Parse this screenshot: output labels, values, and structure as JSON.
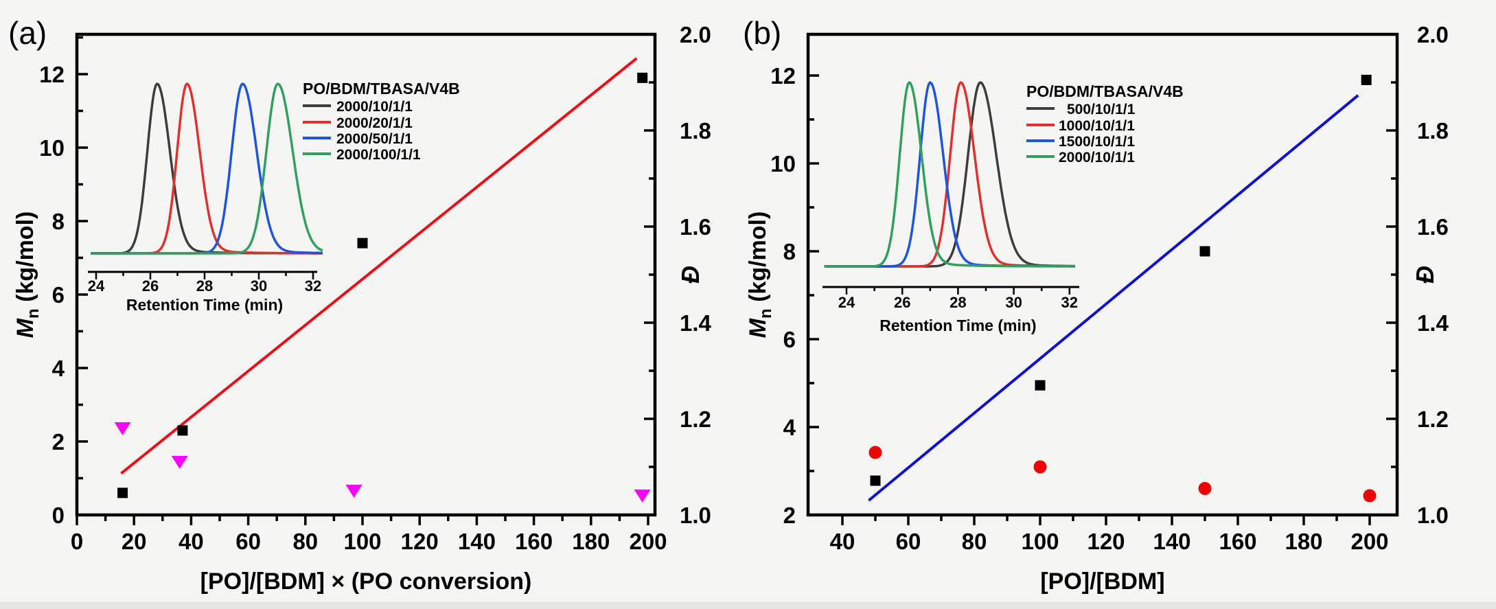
{
  "figure": {
    "background": "#f5f5f3",
    "bottom_strip_color": "#e4e4e2",
    "description": "Dual-panel polymer chart: Mn and dispersity versus monomer ratio with GPC inset traces"
  },
  "chart_data": [
    {
      "type": "scatter",
      "panel_label": "(a)",
      "x_axis": {
        "title": "[PO]/[BDM] × (PO conversion)",
        "range": [
          0,
          202.5
        ],
        "major_ticks": [
          0,
          20,
          40,
          60,
          80,
          100,
          120,
          140,
          160,
          180,
          200
        ],
        "minor_step": 10
      },
      "y_axis_left": {
        "title_symbol": "M",
        "title_subscript": "n",
        "title_units": " (kg/mol)",
        "range": [
          0,
          13.08
        ],
        "major_ticks": [
          0,
          2,
          4,
          6,
          8,
          10,
          12
        ],
        "minor_step": 1
      },
      "y_axis_right": {
        "title": "Đ",
        "range": [
          1.0,
          2.0
        ],
        "major_tick_labels": [
          "1.0",
          "1.2",
          "1.4",
          "1.6",
          "1.8",
          "2.0"
        ],
        "minor_step": 0.1
      },
      "series": [
        {
          "name": "Mn (kg/mol)",
          "axis": "left",
          "marker": "square",
          "color": "#000000",
          "points": [
            [
              16,
              0.6
            ],
            [
              37,
              2.3
            ],
            [
              100,
              7.4
            ],
            [
              198,
              11.9
            ]
          ]
        },
        {
          "name": "Đ",
          "axis": "right",
          "marker": "triangle-down",
          "color": "#ff00ff",
          "points": [
            [
              16,
              1.18
            ],
            [
              36,
              1.11
            ],
            [
              97,
              1.05
            ],
            [
              198,
              1.04
            ]
          ]
        }
      ],
      "fit_line": {
        "color": "#ec0d18",
        "from": [
          15.5,
          1.13
        ],
        "to": [
          196,
          12.43
        ]
      },
      "inset": {
        "x_title": "Retention Time (min)",
        "x_ticks": [
          24,
          26,
          28,
          30,
          32
        ],
        "x_range": [
          23.8,
          32.4
        ],
        "legend_title": "PO/BDM/TBASA/V4B",
        "curves": [
          {
            "label": "2000/10/1/1",
            "color": "#3d3d3d",
            "peak_min": 26.25,
            "sigma": 0.36
          },
          {
            "label": "2000/20/1/1",
            "color": "#e0312e",
            "peak_min": 27.35,
            "sigma": 0.36
          },
          {
            "label": "2000/50/1/1",
            "color": "#1d55dd",
            "peak_min": 29.4,
            "sigma": 0.4
          },
          {
            "label": "2000/100/1/1",
            "color": "#31a05e",
            "peak_min": 30.7,
            "sigma": 0.42
          }
        ]
      }
    },
    {
      "type": "scatter",
      "panel_label": "(b)",
      "x_axis": {
        "title": "[PO]/[BDM]",
        "range": [
          29.6,
          208.3
        ],
        "major_ticks": [
          40,
          60,
          80,
          100,
          120,
          140,
          160,
          180,
          200
        ],
        "minor_step": 10
      },
      "y_axis_left": {
        "title_symbol": "M",
        "title_subscript": "n",
        "title_units": " (kg/mol)",
        "range": [
          2,
          12.95
        ],
        "major_ticks": [
          2,
          4,
          6,
          8,
          10,
          12
        ],
        "minor_step": 1
      },
      "y_axis_right": {
        "title": "Đ",
        "range": [
          1.0,
          2.0
        ],
        "major_tick_labels": [
          "1.0",
          "1.2",
          "1.4",
          "1.6",
          "1.8",
          "2.0"
        ],
        "minor_step": 0.1
      },
      "series": [
        {
          "name": "Mn (kg/mol)",
          "axis": "left",
          "marker": "square",
          "color": "#000000",
          "points": [
            [
              50,
              2.78
            ],
            [
              100,
              4.95
            ],
            [
              150,
              8.0
            ],
            [
              199,
              11.9
            ]
          ]
        },
        {
          "name": "Đ",
          "axis": "right",
          "marker": "circle",
          "color": "#ee0000",
          "points": [
            [
              50,
              1.13
            ],
            [
              100,
              1.1
            ],
            [
              150,
              1.055
            ],
            [
              200,
              1.04
            ]
          ]
        }
      ],
      "fit_line": {
        "color": "#1010cf",
        "from": [
          48,
          2.33
        ],
        "to": [
          196.5,
          11.55
        ]
      },
      "inset": {
        "x_title": "Retention Time (min)",
        "x_ticks": [
          24,
          26,
          28,
          30,
          32
        ],
        "x_range": [
          23.2,
          32.25
        ],
        "legend_title": "PO/BDM/TBASA/V4B",
        "curves": [
          {
            "label": "500/10/1/1",
            "color": "#3d3d3d",
            "peak_min": 28.8,
            "sigma": 0.44
          },
          {
            "label": "1000/10/1/1",
            "color": "#e0312e",
            "peak_min": 28.1,
            "sigma": 0.38
          },
          {
            "label": "1500/10/1/1",
            "color": "#1d55dd",
            "peak_min": 27.0,
            "sigma": 0.36
          },
          {
            "label": "2000/10/1/1",
            "color": "#31a05e",
            "peak_min": 26.25,
            "sigma": 0.34
          }
        ]
      }
    }
  ]
}
